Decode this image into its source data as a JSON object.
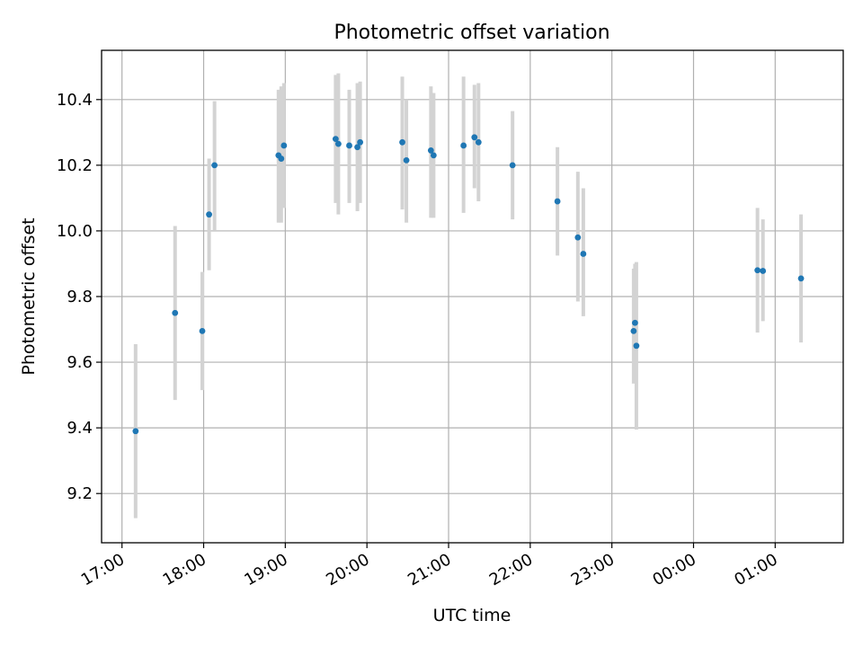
{
  "chart_data": {
    "type": "scatter",
    "title": "Photometric offset variation",
    "xlabel": "UTC time",
    "ylabel": "Photometric offset",
    "grid": true,
    "x_time_range": [
      "16:45",
      "01:50"
    ],
    "ylim": [
      9.05,
      10.55
    ],
    "x_ticks": [
      {
        "time": "17:00",
        "label": "17:00"
      },
      {
        "time": "18:00",
        "label": "18:00"
      },
      {
        "time": "19:00",
        "label": "19:00"
      },
      {
        "time": "20:00",
        "label": "20:00"
      },
      {
        "time": "21:00",
        "label": "21:00"
      },
      {
        "time": "22:00",
        "label": "22:00"
      },
      {
        "time": "23:00",
        "label": "23:00"
      },
      {
        "time": "00:00",
        "label": "00:00"
      },
      {
        "time": "01:00",
        "label": "01:00"
      }
    ],
    "y_ticks": [
      {
        "value": 9.2,
        "label": "9.2"
      },
      {
        "value": 9.4,
        "label": "9.4"
      },
      {
        "value": 9.6,
        "label": "9.6"
      },
      {
        "value": 9.8,
        "label": "9.8"
      },
      {
        "value": 10.0,
        "label": "10.0"
      },
      {
        "value": 10.2,
        "label": "10.2"
      },
      {
        "value": 10.4,
        "label": "10.4"
      }
    ],
    "series": [
      {
        "marker_color": "#1f77b4",
        "errorbar_color": "#d3d3d3",
        "points": [
          {
            "time": "17:10",
            "y": 9.39,
            "ylo": 9.125,
            "yhi": 9.655
          },
          {
            "time": "17:39",
            "y": 9.75,
            "ylo": 9.485,
            "yhi": 10.015
          },
          {
            "time": "17:59",
            "y": 9.695,
            "ylo": 9.515,
            "yhi": 9.875
          },
          {
            "time": "18:04",
            "y": 10.05,
            "ylo": 9.88,
            "yhi": 10.22
          },
          {
            "time": "18:08",
            "y": 10.2,
            "ylo": 10.0,
            "yhi": 10.395
          },
          {
            "time": "18:55",
            "y": 10.23,
            "ylo": 10.025,
            "yhi": 10.43
          },
          {
            "time": "18:57",
            "y": 10.22,
            "ylo": 10.025,
            "yhi": 10.44
          },
          {
            "time": "18:59",
            "y": 10.26,
            "ylo": 10.07,
            "yhi": 10.45
          },
          {
            "time": "19:37",
            "y": 10.28,
            "ylo": 10.085,
            "yhi": 10.475
          },
          {
            "time": "19:39",
            "y": 10.265,
            "ylo": 10.05,
            "yhi": 10.48
          },
          {
            "time": "19:47",
            "y": 10.26,
            "ylo": 10.085,
            "yhi": 10.43
          },
          {
            "time": "19:53",
            "y": 10.255,
            "ylo": 10.06,
            "yhi": 10.45
          },
          {
            "time": "19:55",
            "y": 10.27,
            "ylo": 10.085,
            "yhi": 10.455
          },
          {
            "time": "20:26",
            "y": 10.27,
            "ylo": 10.065,
            "yhi": 10.47
          },
          {
            "time": "20:29",
            "y": 10.215,
            "ylo": 10.025,
            "yhi": 10.4
          },
          {
            "time": "20:47",
            "y": 10.245,
            "ylo": 10.04,
            "yhi": 10.44
          },
          {
            "time": "20:49",
            "y": 10.23,
            "ylo": 10.04,
            "yhi": 10.42
          },
          {
            "time": "21:11",
            "y": 10.26,
            "ylo": 10.055,
            "yhi": 10.47
          },
          {
            "time": "21:19",
            "y": 10.285,
            "ylo": 10.13,
            "yhi": 10.445
          },
          {
            "time": "21:22",
            "y": 10.27,
            "ylo": 10.09,
            "yhi": 10.45
          },
          {
            "time": "21:47",
            "y": 10.2,
            "ylo": 10.035,
            "yhi": 10.365
          },
          {
            "time": "22:20",
            "y": 10.09,
            "ylo": 9.925,
            "yhi": 10.255
          },
          {
            "time": "22:35",
            "y": 9.98,
            "ylo": 9.785,
            "yhi": 10.18
          },
          {
            "time": "22:39",
            "y": 9.93,
            "ylo": 9.74,
            "yhi": 10.13
          },
          {
            "time": "23:16",
            "y": 9.695,
            "ylo": 9.535,
            "yhi": 9.885
          },
          {
            "time": "23:17",
            "y": 9.72,
            "ylo": 9.54,
            "yhi": 9.9
          },
          {
            "time": "23:18",
            "y": 9.65,
            "ylo": 9.395,
            "yhi": 9.905
          },
          {
            "time": "00:47",
            "y": 9.88,
            "ylo": 9.69,
            "yhi": 10.07
          },
          {
            "time": "00:51",
            "y": 9.878,
            "ylo": 9.725,
            "yhi": 10.035
          },
          {
            "time": "01:19",
            "y": 9.855,
            "ylo": 9.66,
            "yhi": 10.05
          }
        ]
      }
    ]
  }
}
